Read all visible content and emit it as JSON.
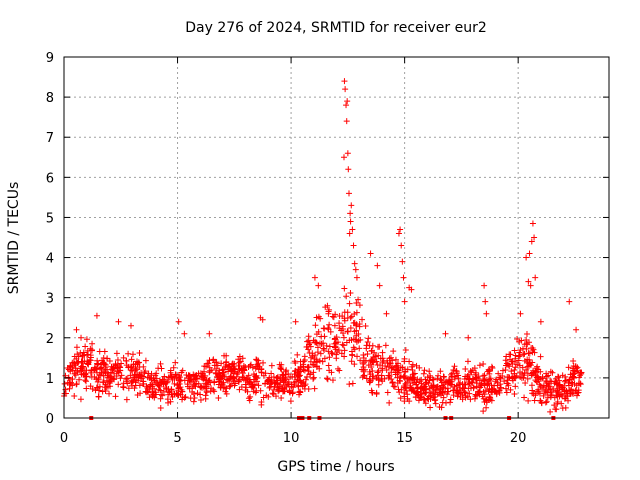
{
  "chart_data": {
    "type": "scatter",
    "title": "Day 276 of 2024, SRMTID for receiver eur2",
    "xlabel": "GPS time / hours",
    "ylabel": "SRMTID / TECUs",
    "xlim": [
      0,
      24
    ],
    "ylim": [
      0,
      9
    ],
    "x_ticks": [
      0,
      5,
      10,
      15,
      20
    ],
    "y_ticks": [
      0,
      1,
      2,
      3,
      4,
      5,
      6,
      7,
      8,
      9
    ],
    "grid": true,
    "marker": "+",
    "series": [
      {
        "name": "SRMTID",
        "color": "#ff0000",
        "trend": [
          [
            0.0,
            0.8,
            0.3
          ],
          [
            0.5,
            1.3,
            0.5
          ],
          [
            1.0,
            1.2,
            0.4
          ],
          [
            1.5,
            1.1,
            0.4
          ],
          [
            2.0,
            1.1,
            0.4
          ],
          [
            2.5,
            1.2,
            0.4
          ],
          [
            3.0,
            1.1,
            0.4
          ],
          [
            3.5,
            0.9,
            0.3
          ],
          [
            4.0,
            0.8,
            0.3
          ],
          [
            4.5,
            0.8,
            0.3
          ],
          [
            5.0,
            0.9,
            0.3
          ],
          [
            5.5,
            0.8,
            0.3
          ],
          [
            6.0,
            0.9,
            0.3
          ],
          [
            6.5,
            1.0,
            0.3
          ],
          [
            7.0,
            1.0,
            0.3
          ],
          [
            7.5,
            1.1,
            0.3
          ],
          [
            8.0,
            1.0,
            0.3
          ],
          [
            8.5,
            1.0,
            0.4
          ],
          [
            9.0,
            0.9,
            0.3
          ],
          [
            9.5,
            0.9,
            0.3
          ],
          [
            10.0,
            0.9,
            0.4
          ],
          [
            10.5,
            1.1,
            0.4
          ],
          [
            11.0,
            1.5,
            0.6
          ],
          [
            11.5,
            1.9,
            0.6
          ],
          [
            12.0,
            2.0,
            0.7
          ],
          [
            12.5,
            2.1,
            0.8
          ],
          [
            13.0,
            1.8,
            0.7
          ],
          [
            13.5,
            1.3,
            0.5
          ],
          [
            14.0,
            1.2,
            0.4
          ],
          [
            14.5,
            1.1,
            0.4
          ],
          [
            15.0,
            1.0,
            0.4
          ],
          [
            15.5,
            0.8,
            0.3
          ],
          [
            16.0,
            0.7,
            0.3
          ],
          [
            16.5,
            0.7,
            0.3
          ],
          [
            17.0,
            0.8,
            0.3
          ],
          [
            17.5,
            0.8,
            0.3
          ],
          [
            18.0,
            0.9,
            0.3
          ],
          [
            18.5,
            0.8,
            0.4
          ],
          [
            19.0,
            0.8,
            0.3
          ],
          [
            19.5,
            1.0,
            0.4
          ],
          [
            20.0,
            1.4,
            0.5
          ],
          [
            20.5,
            1.3,
            0.5
          ],
          [
            21.0,
            0.8,
            0.4
          ],
          [
            21.5,
            0.7,
            0.3
          ],
          [
            22.0,
            0.7,
            0.3
          ],
          [
            22.5,
            1.0,
            0.4
          ],
          [
            22.8,
            1.0,
            0.3
          ]
        ],
        "peaks": [
          [
            0.55,
            2.2
          ],
          [
            0.75,
            2.0
          ],
          [
            1.45,
            2.55
          ],
          [
            2.4,
            2.4
          ],
          [
            2.95,
            2.3
          ],
          [
            5.05,
            2.4
          ],
          [
            5.3,
            2.1
          ],
          [
            6.4,
            2.1
          ],
          [
            8.65,
            2.5
          ],
          [
            8.75,
            2.45
          ],
          [
            10.2,
            2.4
          ],
          [
            11.05,
            3.5
          ],
          [
            11.2,
            3.3
          ],
          [
            11.6,
            2.8
          ],
          [
            12.35,
            8.4
          ],
          [
            12.38,
            8.2
          ],
          [
            12.42,
            7.8
          ],
          [
            12.45,
            7.4
          ],
          [
            12.5,
            6.6
          ],
          [
            12.52,
            6.2
          ],
          [
            12.55,
            5.6
          ],
          [
            12.6,
            5.1
          ],
          [
            12.65,
            5.3
          ],
          [
            12.7,
            4.7
          ],
          [
            12.75,
            4.3
          ],
          [
            12.8,
            3.85
          ],
          [
            12.85,
            3.7
          ],
          [
            12.9,
            3.5
          ],
          [
            12.95,
            2.95
          ],
          [
            12.33,
            6.5
          ],
          [
            12.47,
            7.9
          ],
          [
            12.58,
            4.6
          ],
          [
            12.62,
            4.9
          ],
          [
            13.5,
            4.1
          ],
          [
            13.8,
            3.8
          ],
          [
            13.9,
            3.3
          ],
          [
            14.2,
            2.6
          ],
          [
            14.75,
            4.6
          ],
          [
            14.8,
            4.7
          ],
          [
            14.85,
            4.3
          ],
          [
            14.9,
            3.9
          ],
          [
            14.95,
            3.5
          ],
          [
            15.0,
            2.9
          ],
          [
            15.2,
            3.25
          ],
          [
            15.3,
            3.2
          ],
          [
            16.8,
            2.1
          ],
          [
            17.8,
            2.0
          ],
          [
            18.5,
            3.3
          ],
          [
            18.55,
            2.9
          ],
          [
            18.6,
            2.6
          ],
          [
            20.35,
            4.0
          ],
          [
            20.45,
            3.4
          ],
          [
            20.5,
            4.1
          ],
          [
            20.55,
            3.3
          ],
          [
            20.6,
            4.4
          ],
          [
            20.65,
            4.85
          ],
          [
            20.7,
            4.5
          ],
          [
            20.75,
            3.5
          ],
          [
            20.1,
            2.6
          ],
          [
            21.0,
            2.4
          ],
          [
            22.25,
            2.9
          ],
          [
            22.55,
            2.2
          ]
        ],
        "zero_points": [
          1.2,
          10.35,
          10.5,
          10.8,
          11.25,
          16.8,
          17.05,
          19.6,
          21.55
        ]
      }
    ]
  }
}
